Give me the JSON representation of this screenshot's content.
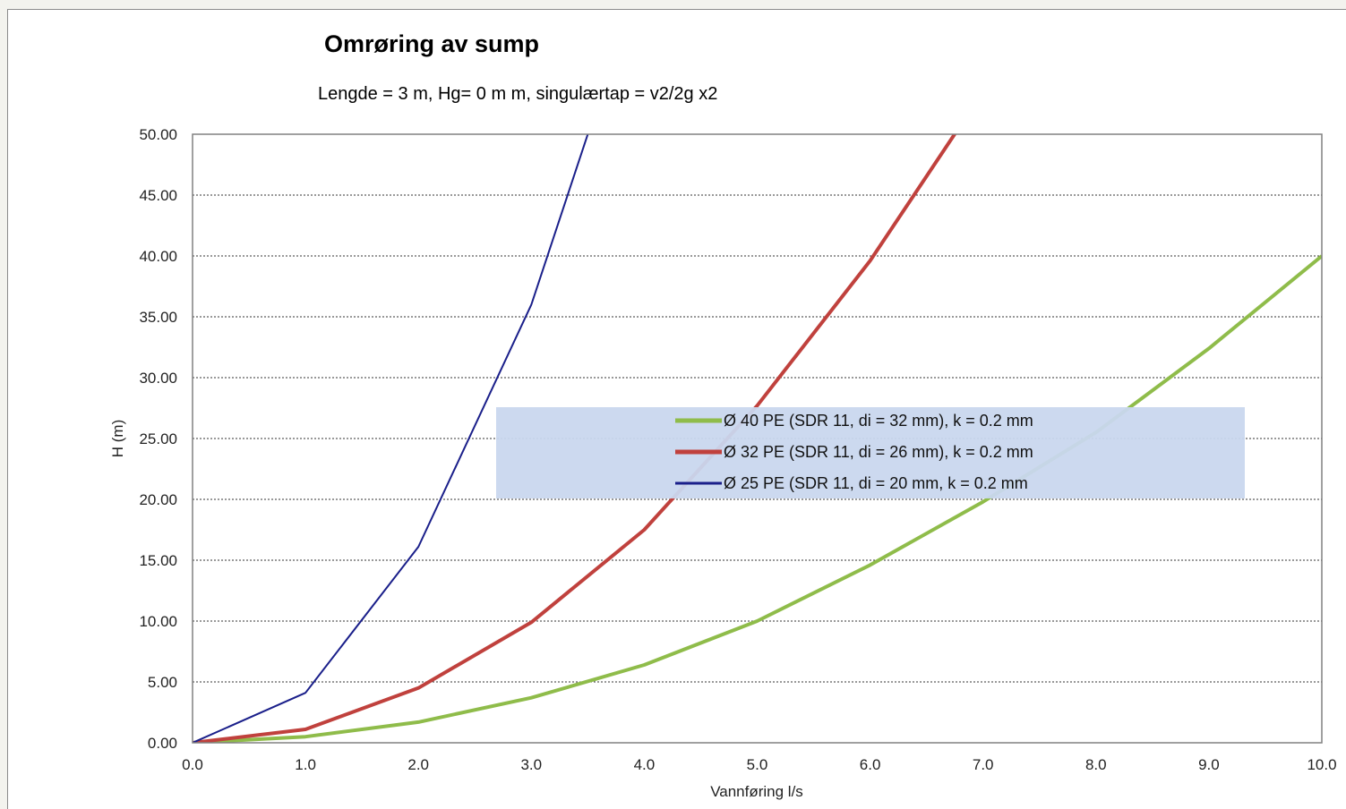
{
  "chart_data": {
    "type": "line",
    "title": "Omrøring av sump",
    "subtitle": "Lengde = 3 m, Hg= 0 m m, singulærtap = v2/2g x2",
    "xlabel": "Vannføring l/s",
    "ylabel": "H (m)",
    "xlim": [
      0,
      10
    ],
    "ylim": [
      0,
      50
    ],
    "x_ticks": [
      "0.0",
      "1.0",
      "2.0",
      "3.0",
      "4.0",
      "5.0",
      "6.0",
      "7.0",
      "8.0",
      "9.0",
      "10.0"
    ],
    "y_ticks": [
      "0.00",
      "5.00",
      "10.00",
      "15.00",
      "20.00",
      "25.00",
      "30.00",
      "35.00",
      "40.00",
      "45.00",
      "50.00"
    ],
    "grid": "horizontal dashed",
    "legend_position": "center-right",
    "series": [
      {
        "name": "Ø 40 PE (SDR 11, di = 32 mm), k = 0.2 mm",
        "color": "#8fbc4a",
        "width": 4,
        "x": [
          0,
          1,
          2,
          3,
          4,
          5,
          6,
          7,
          8,
          9,
          10
        ],
        "y": [
          0,
          0.5,
          1.7,
          3.7,
          6.4,
          10.0,
          14.6,
          19.8,
          25.5,
          32.4,
          40.0
        ]
      },
      {
        "name": "Ø 32 PE (SDR 11, di = 26 mm), k = 0.2 mm",
        "color": "#c0413d",
        "width": 4,
        "x": [
          0,
          1,
          2,
          3,
          4,
          5,
          6,
          7
        ],
        "y": [
          0,
          1.1,
          4.5,
          9.9,
          17.5,
          27.7,
          39.6,
          53.5
        ]
      },
      {
        "name": "Ø 25 PE (SDR 11, di = 20 mm, k = 0.2 mm",
        "color": "#1a1f8a",
        "width": 2,
        "x": [
          0,
          1,
          2,
          3,
          4
        ],
        "y": [
          0,
          4.1,
          16.1,
          36.0,
          64.0
        ]
      }
    ]
  }
}
